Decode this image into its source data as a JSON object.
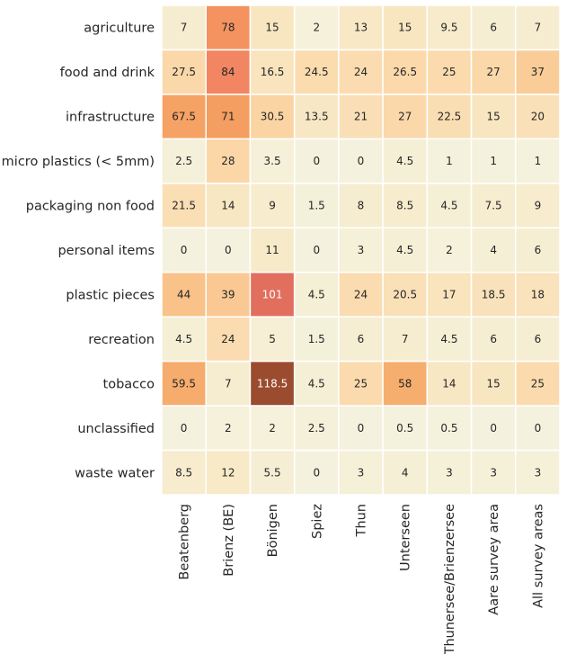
{
  "chart_data": {
    "type": "heatmap",
    "title": "",
    "xlabel": "",
    "ylabel": "",
    "rows": [
      "agriculture",
      "food and drink",
      "infrastructure",
      "micro plastics (< 5mm)",
      "packaging non food",
      "personal items",
      "plastic pieces",
      "recreation",
      "tobacco",
      "unclassified",
      "waste water"
    ],
    "columns": [
      "Beatenberg",
      "Brienz (BE)",
      "Bönigen",
      "Spiez",
      "Thun",
      "Unterseen",
      "Thunersee/Brienzersee",
      "Aare survey area",
      "All survey areas"
    ],
    "values": [
      [
        7,
        78,
        15,
        2,
        13,
        15,
        9.5,
        6,
        7
      ],
      [
        27.5,
        84,
        16.5,
        24.5,
        24,
        26.5,
        25,
        27,
        37
      ],
      [
        67.5,
        71,
        30.5,
        13.5,
        21,
        27,
        22.5,
        15,
        20
      ],
      [
        2.5,
        28,
        3.5,
        0,
        0,
        4.5,
        1,
        1,
        1
      ],
      [
        21.5,
        14,
        9,
        1.5,
        8,
        8.5,
        4.5,
        7.5,
        9
      ],
      [
        0,
        0,
        11,
        0,
        3,
        4.5,
        2,
        4,
        6
      ],
      [
        44,
        39,
        101,
        4.5,
        24,
        20.5,
        17,
        18.5,
        18
      ],
      [
        4.5,
        24,
        5,
        1.5,
        6,
        7,
        4.5,
        6,
        6
      ],
      [
        59.5,
        7,
        118.5,
        4.5,
        25,
        58,
        14,
        15,
        25
      ],
      [
        0,
        2,
        2,
        2.5,
        0,
        0.5,
        0.5,
        0,
        0
      ],
      [
        8.5,
        12,
        5.5,
        0,
        3,
        4,
        3,
        3,
        3
      ]
    ],
    "color_scale": {
      "stops": [
        {
          "v": 0,
          "color": "#f4f2de"
        },
        {
          "v": 10,
          "color": "#f7ebcb"
        },
        {
          "v": 25,
          "color": "#fbdbae"
        },
        {
          "v": 40,
          "color": "#fac891"
        },
        {
          "v": 60,
          "color": "#f6ab6b"
        },
        {
          "v": 75,
          "color": "#f5995e"
        },
        {
          "v": 85,
          "color": "#f28462"
        },
        {
          "v": 101,
          "color": "#e26e5e"
        },
        {
          "v": 118.5,
          "color": "#9b4c2e"
        }
      ],
      "dark_text_color": "#262626",
      "light_text_color": "#ffffff",
      "light_text_threshold": 95
    },
    "grid": false,
    "cell_border_color": "#ffffff"
  }
}
